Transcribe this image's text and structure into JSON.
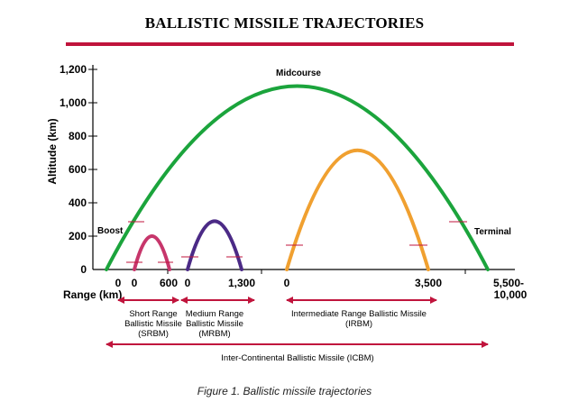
{
  "title": "BALLISTIC MISSILE TRAJECTORIES",
  "caption": "Figure 1. Ballistic missile trajectories",
  "colors": {
    "title_rule": "#c0143c",
    "srbm": "#c7366b",
    "mrbm": "#4b2a86",
    "irbm": "#f0a030",
    "icbm": "#1ba43c",
    "range_arrow": "#c0143c"
  },
  "chart_data": {
    "type": "line",
    "ylabel": "Altitude (km)",
    "xlabel": "Range (km)",
    "yticks": [
      "0",
      "1,200",
      "1,000",
      "800",
      "600",
      "400",
      "200"
    ],
    "ylim": [
      0,
      1200
    ],
    "phase_labels": {
      "boost": "Boost",
      "midcourse": "Midcourse",
      "terminal": "Terminal"
    },
    "x_tick_labels": {
      "srbm_start": "0",
      "srbm_end": "600",
      "mrbm_start": "0",
      "mrbm_end": "1,300",
      "irbm_start": "0",
      "irbm_end": "3,500",
      "icbm_end_1": "5,500-",
      "icbm_end_2": "10,000"
    },
    "series": [
      {
        "key": "srbm",
        "peak_altitude": 200
      },
      {
        "key": "mrbm",
        "peak_altitude": 290
      },
      {
        "key": "irbm",
        "peak_altitude": 715
      },
      {
        "key": "icbm",
        "peak_altitude": 1100
      }
    ],
    "range_classes": {
      "srbm": [
        "Short Range",
        "Ballistic Missile",
        "(SRBM)"
      ],
      "mrbm": [
        "Medium Range",
        "Ballistic Missile",
        "(MRBM)"
      ],
      "irbm": [
        "Intermediate Range Ballistic Missile",
        "(IRBM)"
      ],
      "icbm": [
        "Inter-Continental Ballistic Missile (ICBM)"
      ]
    }
  }
}
